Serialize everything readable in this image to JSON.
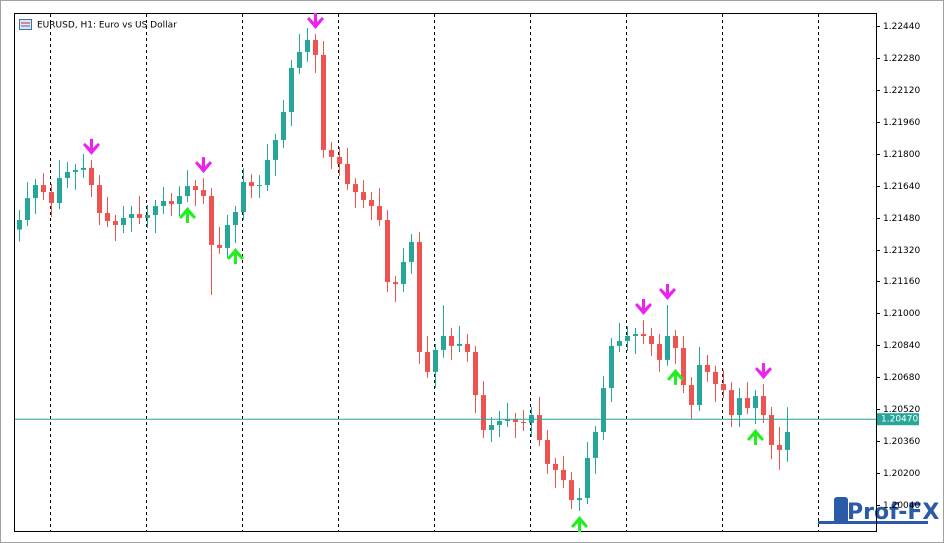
{
  "chart_data": {
    "type": "candlestick",
    "title": "EURUSD, H1:  Euro vs US Dollar",
    "open": [
      1.2142,
      1.21468,
      1.21578,
      1.21643,
      1.21608,
      1.21553,
      1.21678,
      1.21709,
      1.21719,
      1.21729,
      1.21643,
      1.21503,
      1.21463,
      1.21443,
      1.21478,
      1.21498,
      1.21478,
      1.21493,
      1.21538,
      1.21563,
      1.21548,
      1.21588,
      1.21638,
      1.21618,
      1.21588,
      1.21343,
      1.21328,
      1.21443,
      1.21508,
      1.21658,
      1.21638,
      1.21643,
      1.21769,
      1.21869,
      1.22009,
      1.2223,
      1.2231,
      1.2237,
      1.22295,
      1.21819,
      1.21784,
      1.21749,
      1.21648,
      1.21608,
      1.21568,
      1.21538,
      1.21468,
      1.21157,
      1.21147,
      1.21258,
      1.21358,
      1.20807,
      1.20707,
      1.20817,
      1.20887,
      1.20837,
      1.20847,
      1.20807,
      1.20591,
      1.20416,
      1.20441,
      1.20461,
      1.20471,
      1.20456,
      1.20451,
      1.20491,
      1.20366,
      1.20246,
      1.20216,
      1.20165,
      1.20065,
      1.20075,
      1.20276,
      1.20406,
      1.20626,
      1.20837,
      1.20862,
      1.20887,
      1.20897,
      1.20887,
      1.20847,
      1.20767,
      1.20887,
      1.20827,
      1.20641,
      1.20541,
      1.20742,
      1.20707,
      1.20646,
      1.20616,
      1.20491,
      1.20576,
      1.20526,
      1.20586,
      1.20491,
      1.20341,
      1.20316
    ],
    "high": [
      1.21518,
      1.21658,
      1.21673,
      1.21703,
      1.21648,
      1.21768,
      1.21759,
      1.21749,
      1.21799,
      1.21769,
      1.21693,
      1.21583,
      1.21493,
      1.21538,
      1.21538,
      1.21588,
      1.21543,
      1.21568,
      1.21633,
      1.21603,
      1.21638,
      1.21718,
      1.21668,
      1.21678,
      1.21628,
      1.21433,
      1.21493,
      1.21538,
      1.21728,
      1.21698,
      1.21693,
      1.21849,
      1.21899,
      1.22069,
      1.2227,
      1.224,
      1.2243,
      1.224,
      1.22365,
      1.21859,
      1.21834,
      1.21829,
      1.21678,
      1.21668,
      1.21608,
      1.21628,
      1.21518,
      1.21187,
      1.21328,
      1.21398,
      1.21408,
      1.20887,
      1.20847,
      1.2104,
      1.20927,
      1.20937,
      1.20897,
      1.20837,
      1.20661,
      1.20481,
      1.20511,
      1.20551,
      1.20501,
      1.20516,
      1.20531,
      1.20581,
      1.20416,
      1.20276,
      1.20286,
      1.20205,
      1.20125,
      1.20356,
      1.20436,
      1.20686,
      1.20877,
      1.20952,
      1.20937,
      1.20927,
      1.20967,
      1.20927,
      1.20897,
      1.21042,
      1.20917,
      1.20887,
      1.20681,
      1.20832,
      1.20792,
      1.20737,
      1.20716,
      1.20656,
      1.20626,
      1.20656,
      1.20616,
      1.20646,
      1.20531,
      1.20431,
      1.2053
    ],
    "low": [
      1.2136,
      1.21438,
      1.21498,
      1.21568,
      1.21483,
      1.21523,
      1.21628,
      1.21619,
      1.21679,
      1.21583,
      1.21443,
      1.21433,
      1.21363,
      1.21403,
      1.21408,
      1.21448,
      1.21428,
      1.21403,
      1.21498,
      1.21488,
      1.21488,
      1.21558,
      1.21538,
      1.21548,
      1.21092,
      1.21298,
      1.21278,
      1.21353,
      1.21468,
      1.21578,
      1.21578,
      1.21613,
      1.21689,
      1.21829,
      1.21939,
      1.222,
      1.2226,
      1.22205,
      1.21779,
      1.21724,
      1.21689,
      1.21618,
      1.21528,
      1.21528,
      1.21468,
      1.21438,
      1.21107,
      1.21057,
      1.21107,
      1.21198,
      1.20747,
      1.20677,
      1.20627,
      1.20777,
      1.20767,
      1.20807,
      1.20757,
      1.20501,
      1.20376,
      1.20356,
      1.20381,
      1.20431,
      1.20376,
      1.20411,
      1.20381,
      1.20336,
      1.20196,
      1.20126,
      1.20125,
      1.2002,
      1.2001,
      1.20045,
      1.20196,
      1.20366,
      1.20556,
      1.20807,
      1.20812,
      1.20797,
      1.20847,
      1.20787,
      1.20707,
      1.20737,
      1.20747,
      1.20601,
      1.20471,
      1.20511,
      1.20657,
      1.20556,
      1.20576,
      1.20431,
      1.20431,
      1.20496,
      1.20446,
      1.20451,
      1.20271,
      1.20216,
      1.20256
    ],
    "close": [
      1.21468,
      1.21578,
      1.21643,
      1.21608,
      1.21553,
      1.21678,
      1.21709,
      1.21719,
      1.21729,
      1.21643,
      1.21503,
      1.21463,
      1.21443,
      1.21478,
      1.21498,
      1.21478,
      1.21493,
      1.21538,
      1.21563,
      1.21548,
      1.21588,
      1.21638,
      1.21618,
      1.21588,
      1.21343,
      1.21328,
      1.21443,
      1.21508,
      1.21658,
      1.21638,
      1.21643,
      1.21769,
      1.21869,
      1.22009,
      1.2223,
      1.2231,
      1.2237,
      1.22295,
      1.21819,
      1.21784,
      1.21749,
      1.21648,
      1.21608,
      1.21568,
      1.21538,
      1.21468,
      1.21157,
      1.21147,
      1.21258,
      1.21358,
      1.20807,
      1.20707,
      1.20817,
      1.20887,
      1.20837,
      1.20847,
      1.20807,
      1.20591,
      1.20416,
      1.20441,
      1.20461,
      1.20471,
      1.20456,
      1.20451,
      1.20491,
      1.20366,
      1.20246,
      1.20216,
      1.20165,
      1.20065,
      1.20075,
      1.20276,
      1.20406,
      1.20626,
      1.20837,
      1.20862,
      1.20887,
      1.20897,
      1.20887,
      1.20847,
      1.20767,
      1.20887,
      1.20827,
      1.20641,
      1.20541,
      1.20742,
      1.20707,
      1.20646,
      1.20616,
      1.20491,
      1.20576,
      1.20526,
      1.20586,
      1.20491,
      1.20341,
      1.20316,
      1.20406
    ],
    "up_color": "#26a69a",
    "down_color": "#ef5350",
    "sell_signals": [
      9,
      23,
      37,
      78,
      81,
      93
    ],
    "sell_color": "#ee22ee",
    "buy_signals": [
      21,
      27,
      70,
      82,
      92
    ],
    "buy_color": "#22ee22",
    "ylim": [
      1.1991,
      1.225
    ],
    "yticks": [
      {
        "value": 1.2244,
        "label": "1.22440"
      },
      {
        "value": 1.2228,
        "label": "1.22280"
      },
      {
        "value": 1.2212,
        "label": "1.22120"
      },
      {
        "value": 1.2196,
        "label": "1.21960"
      },
      {
        "value": 1.218,
        "label": "1.21800"
      },
      {
        "value": 1.2164,
        "label": "1.21640"
      },
      {
        "value": 1.2148,
        "label": "1.21480"
      },
      {
        "value": 1.2132,
        "label": "1.21320"
      },
      {
        "value": 1.2116,
        "label": "1.21160"
      },
      {
        "value": 1.21,
        "label": "1.21000"
      },
      {
        "value": 1.2084,
        "label": "1.20840"
      },
      {
        "value": 1.2068,
        "label": "1.20680"
      },
      {
        "value": 1.2052,
        "label": "1.20520"
      },
      {
        "value": 1.2036,
        "label": "1.20360"
      },
      {
        "value": 1.202,
        "label": "1.20200"
      },
      {
        "value": 1.2004,
        "label": "1.20040"
      }
    ],
    "current_price": {
      "value": 1.2047,
      "label": "1.20470"
    },
    "current_color": "#26a69a",
    "watermark": "Prof-FX"
  }
}
